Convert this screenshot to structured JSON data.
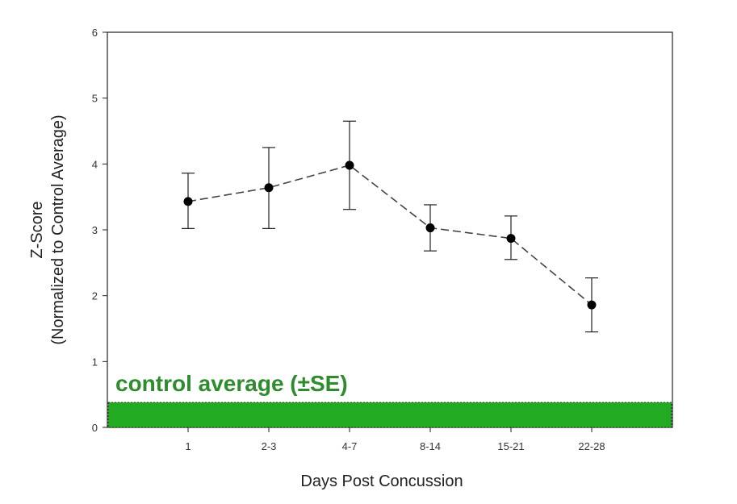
{
  "chart_data": {
    "type": "line",
    "title": "",
    "xlabel": "Days Post Concussion",
    "ylabel_line1": "Z-Score",
    "ylabel_line2": "(Normalized to Control Average)",
    "categories": [
      "1",
      "2-3",
      "4-7",
      "8-14",
      "15-21",
      "22-28"
    ],
    "series": [
      {
        "values": [
          3.43,
          3.64,
          3.98,
          3.03,
          2.87,
          1.86
        ],
        "error_upper": [
          3.86,
          4.25,
          4.65,
          3.38,
          3.21,
          2.27
        ],
        "error_lower": [
          3.02,
          3.02,
          3.31,
          2.68,
          2.55,
          1.45
        ],
        "style": "dashed",
        "color": "#000000"
      }
    ],
    "ylim": [
      0,
      6
    ],
    "yticks": [
      "0",
      "1",
      "2",
      "3",
      "4",
      "5",
      "6"
    ],
    "grid": false,
    "legend": "none",
    "control_band": {
      "label": "control average (±SE)",
      "lower": 0.0,
      "upper": 0.38,
      "color": "#22aa22",
      "label_color": "#2e8b2e"
    }
  }
}
